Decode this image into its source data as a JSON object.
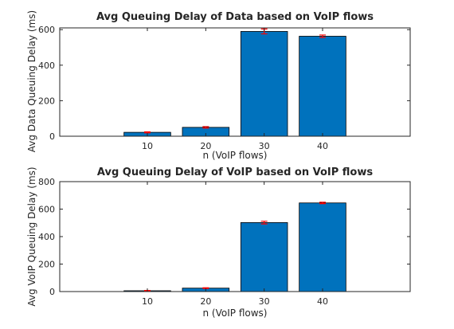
{
  "chart_data": [
    {
      "type": "bar",
      "title": "Avg Queuing Delay of Data based on VoIP flows",
      "xlabel": "n (VoIP flows)",
      "ylabel": "Avg Data Queuing Delay (ms)",
      "categories": [
        "10",
        "20",
        "30",
        "40"
      ],
      "x": [
        10,
        20,
        30,
        40
      ],
      "values": [
        22,
        50,
        590,
        563
      ],
      "errors": [
        3,
        4,
        14,
        7
      ],
      "xlim": [
        -5,
        55
      ],
      "ylim": [
        0,
        610
      ],
      "yticks": [
        0,
        200,
        400,
        600
      ],
      "bar_color": "#0072bd",
      "error_color": "#ff0000",
      "grid": false
    },
    {
      "type": "bar",
      "title": "Avg Queuing Delay of VoIP based on VoIP flows",
      "xlabel": "n (VoIP flows)",
      "ylabel": "Avg VoIP Queuing Delay (ms)",
      "categories": [
        "10",
        "20",
        "30",
        "40"
      ],
      "x": [
        10,
        20,
        30,
        40
      ],
      "values": [
        6,
        25,
        502,
        645
      ],
      "errors": [
        2,
        3,
        10,
        5
      ],
      "xlim": [
        -5,
        55
      ],
      "ylim": [
        0,
        800
      ],
      "yticks": [
        0,
        200,
        400,
        600,
        800
      ],
      "bar_color": "#0072bd",
      "error_color": "#ff0000",
      "grid": false
    }
  ]
}
